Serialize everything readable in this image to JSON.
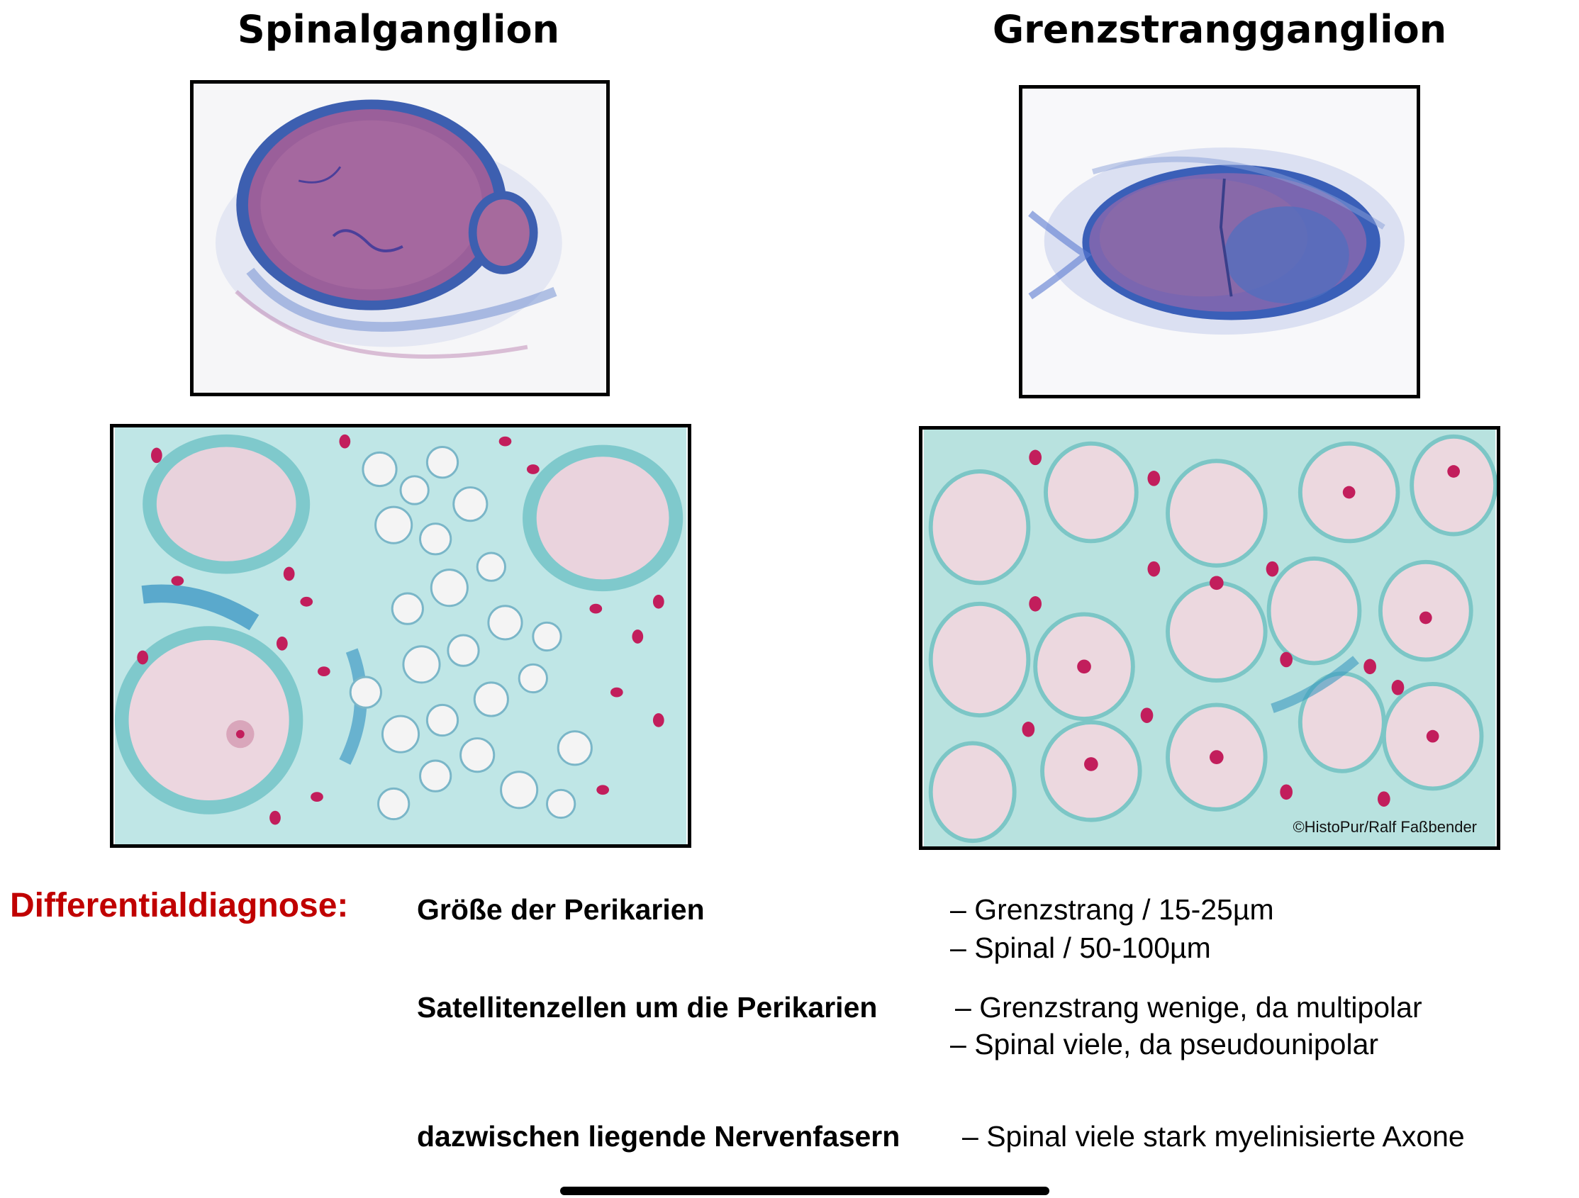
{
  "headings": {
    "left": "Spinalganglion",
    "right": "Grenzstrangganglion"
  },
  "figures": {
    "top_left": "spinal-ganglion-overview-icon",
    "top_right": "sympathetic-ganglion-overview-icon",
    "bottom_left": "spinal-ganglion-detail-icon",
    "bottom_right": "sympathetic-ganglion-detail-icon",
    "copyright": "©HistoPur/Ralf Faßbender"
  },
  "differential": {
    "label": "Differentialdiagnose:",
    "criteria": [
      {
        "title": "Größe der Perikarien",
        "lines": [
          "– Grenzstrang / 15-25µm",
          "– Spinal / 50-100µm"
        ]
      },
      {
        "title": "Satellitenzellen um die Perikarien",
        "lines": [
          "– Grenzstrang wenige, da multipolar",
          "– Spinal viele, da pseudounipolar"
        ]
      },
      {
        "title": "dazwischen liegende Nervenfasern",
        "lines": [
          "– Spinal viele stark myelinisierte Axone"
        ]
      }
    ]
  },
  "colors": {
    "label_red": "#c00000",
    "stain_purple": "#8a5a9e",
    "stain_blue": "#3a6fc2",
    "stain_cyan": "#8fd3d6",
    "nucleus_magenta": "#c21e5c"
  }
}
